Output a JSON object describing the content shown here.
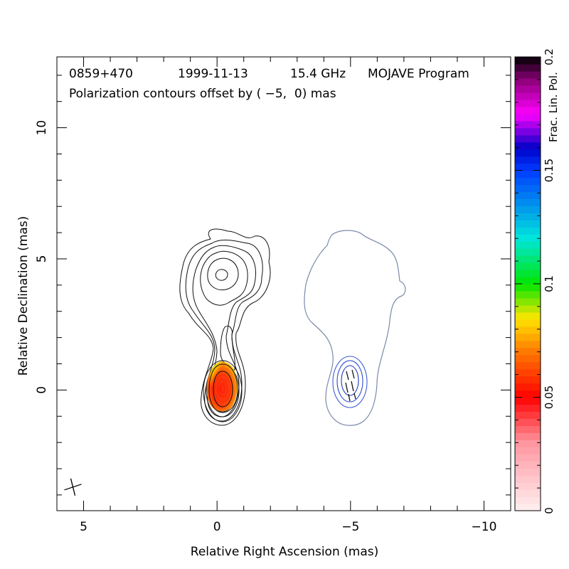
{
  "chart_data": {
    "type": "contour_map",
    "source_name": "0859+470",
    "date": "1999-11-13",
    "frequency": "15.4 GHz",
    "program": "MOJAVE Program",
    "subtitle": "Polarization contours offset by ( −5,  0) mas",
    "xlabel": "Relative Right Ascension (mas)",
    "ylabel": "Relative Declination (mas)",
    "xlim": [
      6.0,
      -11.0
    ],
    "ylim": [
      -4.6,
      12.7
    ],
    "x_major_ticks": [
      5,
      0,
      -5,
      -10
    ],
    "x_tick_labels": [
      "5",
      "0",
      "−5",
      "−10"
    ],
    "y_major_ticks": [
      0,
      5,
      10
    ],
    "y_tick_labels": [
      "0",
      "5",
      "10"
    ],
    "colorbar": {
      "label": "Frac. Lin. Pol.",
      "range": [
        0,
        0.2
      ],
      "ticks": [
        0,
        0.05,
        0.1,
        0.15,
        0.2
      ],
      "tick_labels": [
        "0",
        "0.05",
        "0.1",
        "0.15",
        "0.2"
      ]
    },
    "polarization_offset_mas": [
      -5,
      0
    ],
    "beam": {
      "x": 5.4,
      "y": -3.7
    },
    "colors": {
      "text": "#000000",
      "subtitle": "#2222dd",
      "pol_outline": "#7080a8",
      "pol_inner": "#2244cc"
    }
  }
}
